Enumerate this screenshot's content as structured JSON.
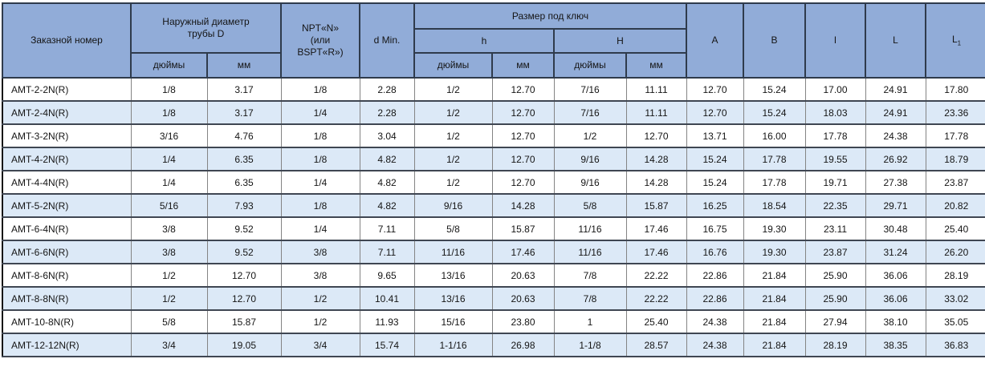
{
  "table": {
    "header": {
      "order_number": "Заказной номер",
      "outer_diameter": "Наружный диаметр трубы D",
      "npt": "NPT«N» (или BSPT«R»)",
      "d_min": "d Min.",
      "wrench_size": "Размер под ключ",
      "h_lower": "h",
      "h_upper": "H",
      "inches_d": "дюймы",
      "mm_d": "мм",
      "inches_h": "дюймы",
      "mm_h": "мм",
      "inches_hh": "дюймы",
      "mm_hh": "мм",
      "col_a": "A",
      "col_b": "B",
      "col_l": "l",
      "col_big_l": "L",
      "col_l1_base": "L",
      "col_l1_sub": "1"
    },
    "colors": {
      "header_bg": "#91acd8",
      "row_bg": "#ffffff",
      "row_alt_bg": "#dce9f7"
    },
    "rows": [
      [
        "AMT-2-2N(R)",
        "1/8",
        "3.17",
        "1/8",
        "2.28",
        "1/2",
        "12.70",
        "7/16",
        "11.11",
        "12.70",
        "15.24",
        "17.00",
        "24.91",
        "17.80"
      ],
      [
        "AMT-2-4N(R)",
        "1/8",
        "3.17",
        "1/4",
        "2.28",
        "1/2",
        "12.70",
        "7/16",
        "11.11",
        "12.70",
        "15.24",
        "18.03",
        "24.91",
        "23.36"
      ],
      [
        "AMT-3-2N(R)",
        "3/16",
        "4.76",
        "1/8",
        "3.04",
        "1/2",
        "12.70",
        "1/2",
        "12.70",
        "13.71",
        "16.00",
        "17.78",
        "24.38",
        "17.78"
      ],
      [
        "AMT-4-2N(R)",
        "1/4",
        "6.35",
        "1/8",
        "4.82",
        "1/2",
        "12.70",
        "9/16",
        "14.28",
        "15.24",
        "17.78",
        "19.55",
        "26.92",
        "18.79"
      ],
      [
        "AMT-4-4N(R)",
        "1/4",
        "6.35",
        "1/4",
        "4.82",
        "1/2",
        "12.70",
        "9/16",
        "14.28",
        "15.24",
        "17.78",
        "19.71",
        "27.38",
        "23.87"
      ],
      [
        "AMT-5-2N(R)",
        "5/16",
        "7.93",
        "1/8",
        "4.82",
        "9/16",
        "14.28",
        "5/8",
        "15.87",
        "16.25",
        "18.54",
        "22.35",
        "29.71",
        "20.82"
      ],
      [
        "AMT-6-4N(R)",
        "3/8",
        "9.52",
        "1/4",
        "7.11",
        "5/8",
        "15.87",
        "11/16",
        "17.46",
        "16.75",
        "19.30",
        "23.11",
        "30.48",
        "25.40"
      ],
      [
        "AMT-6-6N(R)",
        "3/8",
        "9.52",
        "3/8",
        "7.11",
        "11/16",
        "17.46",
        "11/16",
        "17.46",
        "16.76",
        "19.30",
        "23.87",
        "31.24",
        "26.20"
      ],
      [
        "AMT-8-6N(R)",
        "1/2",
        "12.70",
        "3/8",
        "9.65",
        "13/16",
        "20.63",
        "7/8",
        "22.22",
        "22.86",
        "21.84",
        "25.90",
        "36.06",
        "28.19"
      ],
      [
        "AMT-8-8N(R)",
        "1/2",
        "12.70",
        "1/2",
        "10.41",
        "13/16",
        "20.63",
        "7/8",
        "22.22",
        "22.86",
        "21.84",
        "25.90",
        "36.06",
        "33.02"
      ],
      [
        "AMT-10-8N(R)",
        "5/8",
        "15.87",
        "1/2",
        "11.93",
        "15/16",
        "23.80",
        "1",
        "25.40",
        "24.38",
        "21.84",
        "27.94",
        "38.10",
        "35.05"
      ],
      [
        "AMT-12-12N(R)",
        "3/4",
        "19.05",
        "3/4",
        "15.74",
        "1-1/16",
        "26.98",
        "1-1/8",
        "28.57",
        "24.38",
        "21.84",
        "28.19",
        "38.35",
        "36.83"
      ]
    ]
  }
}
